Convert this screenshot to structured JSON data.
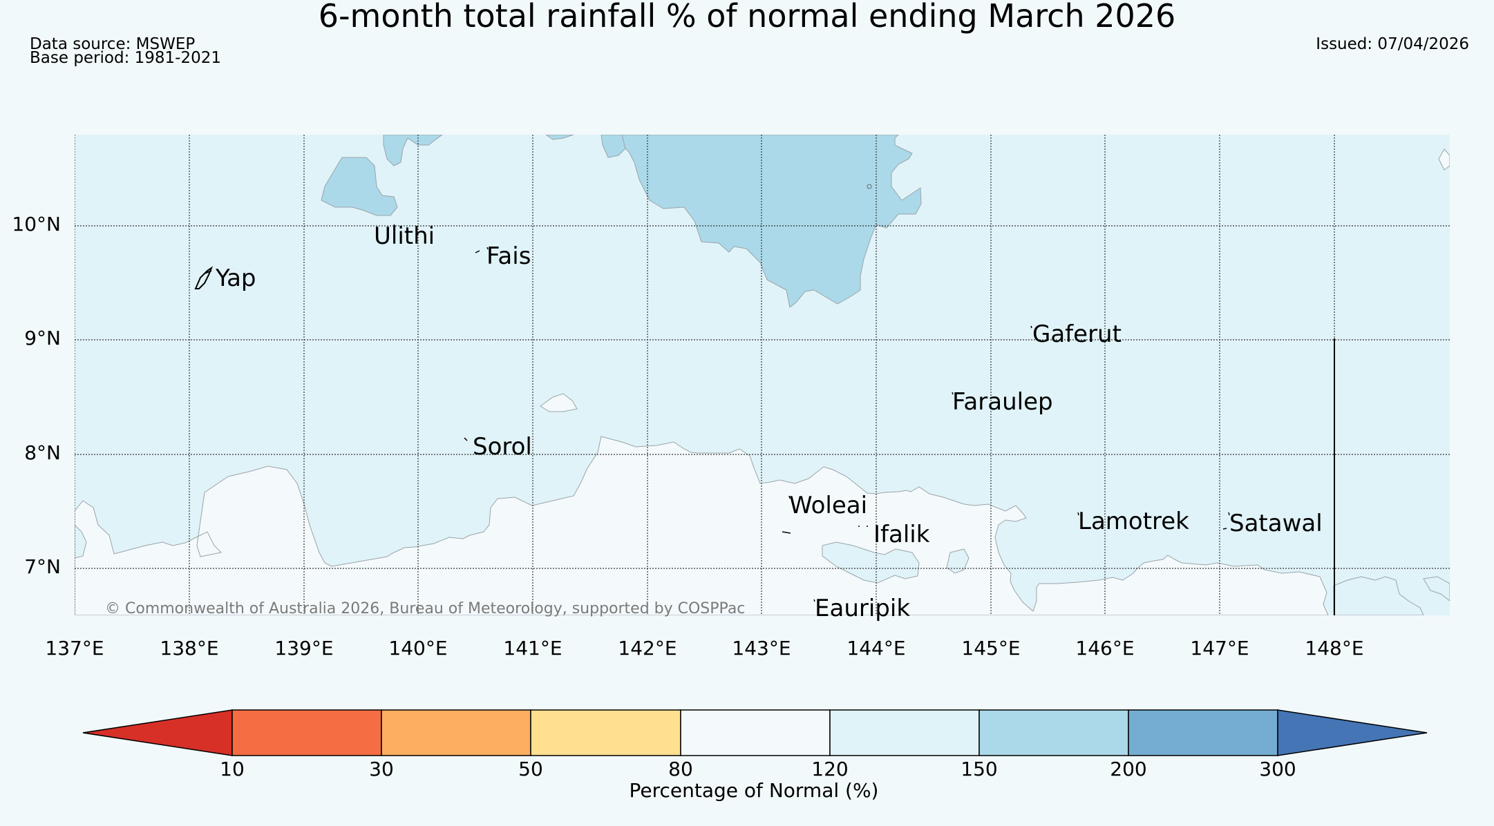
{
  "title": "6-month total rainfall % of normal ending March 2026",
  "data_source": "Data source: MSWEP",
  "base_period": "Base period: 1981-2021",
  "issued": "Issued: 07/04/2026",
  "copyright": "© Commonwealth of Australia 2026, Bureau of Meteorology, supported by COSPPac",
  "map": {
    "lat_labels": [
      "10°N",
      "9°N",
      "8°N",
      "7°N"
    ],
    "lon_labels": [
      "137°E",
      "138°E",
      "139°E",
      "140°E",
      "141°E",
      "142°E",
      "143°E",
      "144°E",
      "145°E",
      "146°E",
      "147°E",
      "148°E"
    ],
    "places": [
      "Ulithi",
      "Fais",
      "Yap",
      "Gaferut",
      "Faraulep",
      "Sorol",
      "Woleai",
      "Ifalik",
      "Lamotrek",
      "Satawal",
      "Eauripik"
    ]
  },
  "legend": {
    "label": "Percentage of Normal (%)",
    "ticks": [
      "10",
      "30",
      "50",
      "80",
      "120",
      "150",
      "200",
      "300"
    ],
    "colors": [
      "#d73027",
      "#f46d43",
      "#fdae61",
      "#fee090",
      "#f4fafc",
      "#e0f3f8",
      "#abd9e9",
      "#74add1",
      "#4575b4"
    ]
  }
}
